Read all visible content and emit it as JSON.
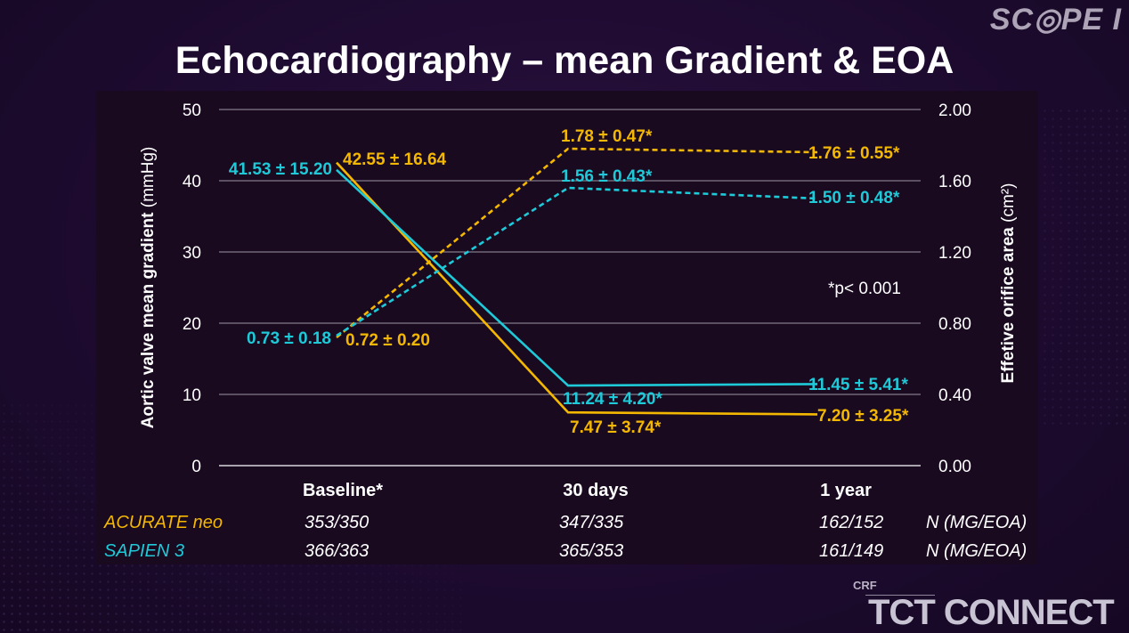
{
  "brand": "SC◎PE I",
  "title": "Echocardiography – mean Gradient & EOA",
  "colors": {
    "acurate": "#F5B800",
    "sapien": "#1EC9D8",
    "axis": "#ffffff",
    "grid": "#9a96a2"
  },
  "chart_data": {
    "type": "line",
    "categories": [
      "Baseline*",
      "30 days",
      "1 year"
    ],
    "ylabel": "Aortic valve mean gradient (mmHg)",
    "ylim": [
      0,
      50
    ],
    "yticks": [
      "0",
      "10",
      "20",
      "30",
      "40",
      "50"
    ],
    "y2label": "Effetive orifice area (cm²)",
    "y2lim": [
      0,
      2.0
    ],
    "y2ticks": [
      "0.00",
      "0.40",
      "0.80",
      "1.20",
      "1.60",
      "2.00"
    ],
    "grid": true,
    "series": [
      {
        "name": "ACURATE neo",
        "metric": "mean gradient",
        "axis": "left",
        "style": "solid",
        "color": "#F5B800",
        "values": [
          42.55,
          7.47,
          7.2
        ],
        "labels": [
          "42.55 ± 16.64",
          "7.47 ± 3.74*",
          "7.20 ± 3.25*"
        ]
      },
      {
        "name": "SAPIEN 3",
        "metric": "mean gradient",
        "axis": "left",
        "style": "solid",
        "color": "#1EC9D8",
        "values": [
          41.53,
          11.24,
          11.45
        ],
        "labels": [
          "41.53 ± 15.20",
          "11.24 ± 4.20*",
          "11.45 ± 5.41*"
        ]
      },
      {
        "name": "ACURATE neo",
        "metric": "EOA",
        "axis": "right",
        "style": "dashed",
        "color": "#F5B800",
        "values": [
          0.72,
          1.78,
          1.76
        ],
        "labels": [
          "0.72 ± 0.20",
          "1.78 ± 0.47*",
          "1.76 ± 0.55*"
        ]
      },
      {
        "name": "SAPIEN 3",
        "metric": "EOA",
        "axis": "right",
        "style": "dashed",
        "color": "#1EC9D8",
        "values": [
          0.73,
          1.56,
          1.5
        ],
        "labels": [
          "0.73 ± 0.18",
          "1.56 ±  0.43*",
          "1.50 ± 0.48*"
        ]
      }
    ],
    "annotation": "*p< 0.001"
  },
  "table": {
    "suffix": "N (MG/EOA)",
    "rows": [
      {
        "name": "ACURATE neo",
        "color": "#F5B800",
        "values": [
          "353/350",
          "347/335",
          "162/152"
        ]
      },
      {
        "name": "SAPIEN 3",
        "color": "#1EC9D8",
        "values": [
          "366/363",
          "365/353",
          "161/149"
        ]
      }
    ]
  },
  "footer": {
    "crf": "CRF",
    "tct": "TCT CONNECT"
  }
}
